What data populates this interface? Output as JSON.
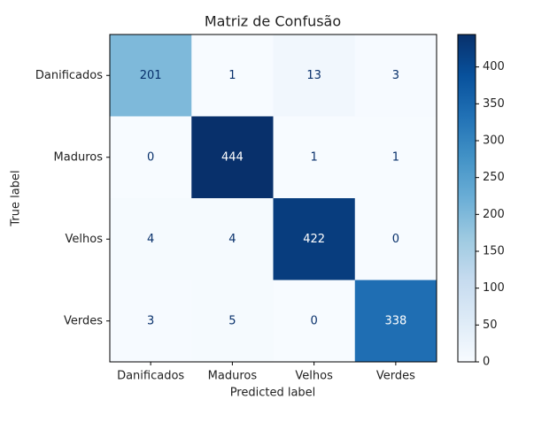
{
  "chart_data": {
    "type": "heatmap",
    "title": "Matriz de Confusão",
    "x_label": "Predicted label",
    "y_label": "True label",
    "x_categories": [
      "Danificados",
      "Maduros",
      "Velhos",
      "Verdes"
    ],
    "y_categories": [
      "Danificados",
      "Maduros",
      "Velhos",
      "Verdes"
    ],
    "values": [
      [
        201,
        1,
        13,
        3
      ],
      [
        0,
        444,
        1,
        1
      ],
      [
        4,
        4,
        422,
        0
      ],
      [
        3,
        5,
        0,
        338
      ]
    ],
    "colormap": "Blues",
    "zlim": [
      0,
      444
    ],
    "colorbar_ticks": [
      0,
      50,
      100,
      150,
      200,
      250,
      300,
      350,
      400
    ]
  }
}
